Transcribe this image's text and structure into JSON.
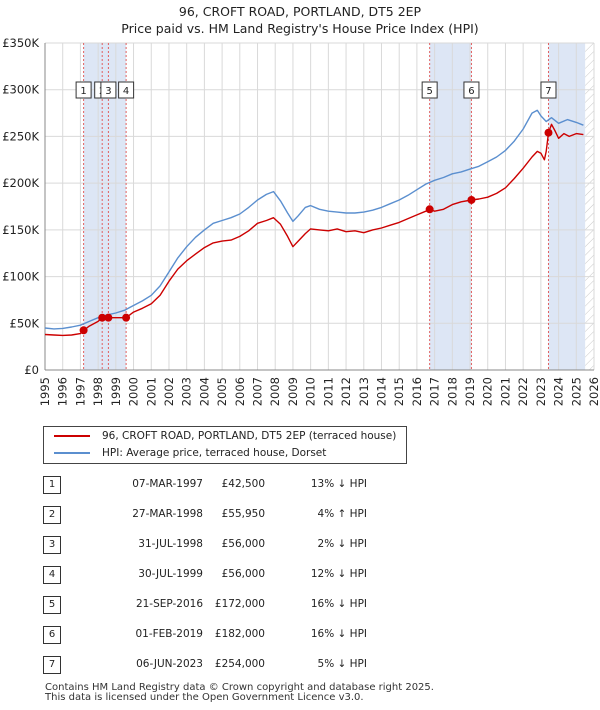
{
  "chart_data": {
    "type": "line",
    "title": "96, CROFT ROAD, PORTLAND, DT5 2EP",
    "subtitle": "Price paid vs. HM Land Registry's House Price Index (HPI)",
    "xlabel": "",
    "ylabel": "",
    "xlim": [
      1995,
      2026
    ],
    "ylim": [
      0,
      350000
    ],
    "x_ticks": [
      "1995",
      "1996",
      "1997",
      "1998",
      "1999",
      "2000",
      "2001",
      "2002",
      "2003",
      "2004",
      "2005",
      "2006",
      "2007",
      "2008",
      "2009",
      "2010",
      "2011",
      "2012",
      "2013",
      "2014",
      "2015",
      "2016",
      "2017",
      "2018",
      "2019",
      "2020",
      "2021",
      "2022",
      "2023",
      "2024",
      "2025",
      "2026"
    ],
    "y_ticks": [
      {
        "value": 0,
        "label": "£0"
      },
      {
        "value": 50000,
        "label": "£50K"
      },
      {
        "value": 100000,
        "label": "£100K"
      },
      {
        "value": 150000,
        "label": "£150K"
      },
      {
        "value": 200000,
        "label": "£200K"
      },
      {
        "value": 250000,
        "label": "£250K"
      },
      {
        "value": 300000,
        "label": "£300K"
      },
      {
        "value": 350000,
        "label": "£350K"
      }
    ],
    "grid": true,
    "series": [
      {
        "name": "96, CROFT ROAD, PORTLAND, DT5 2EP (terraced house)",
        "color": "#cc0000",
        "x": [
          1995.0,
          1995.5,
          1996.0,
          1996.5,
          1997.0,
          1997.18,
          1997.5,
          1998.0,
          1998.23,
          1998.4,
          1998.58,
          1999.0,
          1999.58,
          2000.0,
          2000.5,
          2001.0,
          2001.5,
          2002.0,
          2002.5,
          2003.0,
          2003.5,
          2004.0,
          2004.5,
          2005.0,
          2005.5,
          2006.0,
          2006.5,
          2007.0,
          2007.5,
          2007.9,
          2008.3,
          2008.7,
          2009.0,
          2009.3,
          2009.7,
          2010.0,
          2010.5,
          2011.0,
          2011.5,
          2012.0,
          2012.5,
          2013.0,
          2013.5,
          2014.0,
          2014.5,
          2015.0,
          2015.5,
          2016.0,
          2016.5,
          2016.72,
          2017.0,
          2017.5,
          2018.0,
          2018.5,
          2019.08,
          2019.5,
          2020.0,
          2020.5,
          2021.0,
          2021.5,
          2022.0,
          2022.5,
          2022.8,
          2023.0,
          2023.2,
          2023.3,
          2023.43,
          2023.6,
          2023.8,
          2024.0,
          2024.3,
          2024.6,
          2025.0,
          2025.4
        ],
        "values": [
          38000,
          37500,
          37000,
          37500,
          39000,
          42500,
          47000,
          52000,
          55950,
          56000,
          56000,
          56000,
          56000,
          62000,
          66000,
          71000,
          80000,
          95000,
          108000,
          117000,
          124000,
          131000,
          136000,
          138000,
          139000,
          143000,
          149000,
          157000,
          160000,
          163000,
          156000,
          143000,
          132000,
          138000,
          146000,
          151000,
          150000,
          149000,
          151000,
          148000,
          149000,
          147000,
          150000,
          152000,
          155000,
          158000,
          162000,
          166000,
          170000,
          172000,
          170000,
          172000,
          177000,
          180000,
          182000,
          183000,
          185000,
          189000,
          195000,
          205000,
          216000,
          228000,
          234000,
          232000,
          225000,
          234000,
          254000,
          263000,
          256000,
          248000,
          253000,
          250000,
          253000,
          252000
        ]
      },
      {
        "name": "HPI: Average price, terraced house, Dorset",
        "color": "#5b8fcf",
        "x": [
          1995.0,
          1995.5,
          1996.0,
          1996.5,
          1997.0,
          1997.5,
          1998.0,
          1998.5,
          1999.0,
          1999.5,
          2000.0,
          2000.5,
          2001.0,
          2001.5,
          2002.0,
          2002.5,
          2003.0,
          2003.5,
          2004.0,
          2004.5,
          2005.0,
          2005.5,
          2006.0,
          2006.5,
          2007.0,
          2007.5,
          2007.9,
          2008.3,
          2008.7,
          2009.0,
          2009.3,
          2009.7,
          2010.0,
          2010.5,
          2011.0,
          2011.5,
          2012.0,
          2012.5,
          2013.0,
          2013.5,
          2014.0,
          2014.5,
          2015.0,
          2015.5,
          2016.0,
          2016.5,
          2017.0,
          2017.5,
          2018.0,
          2018.5,
          2019.0,
          2019.5,
          2020.0,
          2020.5,
          2021.0,
          2021.5,
          2022.0,
          2022.5,
          2022.8,
          2023.0,
          2023.3,
          2023.6,
          2024.0,
          2024.5,
          2025.0,
          2025.4
        ],
        "values": [
          45000,
          44000,
          44500,
          46000,
          48000,
          52000,
          56000,
          59000,
          61000,
          64000,
          69000,
          74000,
          80000,
          90000,
          105000,
          120000,
          132000,
          142000,
          150000,
          157000,
          160000,
          163000,
          167000,
          174000,
          182000,
          188000,
          191000,
          181000,
          168000,
          159000,
          165000,
          174000,
          176000,
          172000,
          170000,
          169000,
          168000,
          168000,
          169000,
          171000,
          174000,
          178000,
          182000,
          187000,
          193000,
          199000,
          203000,
          206000,
          210000,
          212000,
          215000,
          218000,
          223000,
          228000,
          235000,
          245000,
          258000,
          275000,
          278000,
          272000,
          266000,
          270000,
          264000,
          268000,
          265000,
          262000
        ]
      }
    ],
    "transactions": [
      {
        "n": "1",
        "x": 1997.18,
        "value": 42500
      },
      {
        "n": "2",
        "x": 1998.23,
        "value": 55950
      },
      {
        "n": "3",
        "x": 1998.58,
        "value": 56000
      },
      {
        "n": "4",
        "x": 1999.58,
        "value": 56000
      },
      {
        "n": "5",
        "x": 2016.72,
        "value": 172000
      },
      {
        "n": "6",
        "x": 2019.08,
        "value": 182000
      },
      {
        "n": "7",
        "x": 2023.43,
        "value": 254000
      }
    ],
    "shaded_ranges": [
      [
        1997.18,
        1998.58
      ],
      [
        1998.58,
        1999.58
      ],
      [
        2016.72,
        2019.08
      ],
      [
        2023.43,
        2025.5
      ]
    ]
  },
  "legend": {
    "property_label": "96, CROFT ROAD, PORTLAND, DT5 2EP (terraced house)",
    "hpi_label": "HPI: Average price, terraced house, Dorset",
    "property_color": "#cc0000",
    "hpi_color": "#5b8fcf"
  },
  "table": [
    {
      "n": "1",
      "date": "07-MAR-1997",
      "price": "£42,500",
      "hpi": "13% ↓ HPI"
    },
    {
      "n": "2",
      "date": "27-MAR-1998",
      "price": "£55,950",
      "hpi": "4% ↑ HPI"
    },
    {
      "n": "3",
      "date": "31-JUL-1998",
      "price": "£56,000",
      "hpi": "2% ↓ HPI"
    },
    {
      "n": "4",
      "date": "30-JUL-1999",
      "price": "£56,000",
      "hpi": "12% ↓ HPI"
    },
    {
      "n": "5",
      "date": "21-SEP-2016",
      "price": "£172,000",
      "hpi": "16% ↓ HPI"
    },
    {
      "n": "6",
      "date": "01-FEB-2019",
      "price": "£182,000",
      "hpi": "16% ↓ HPI"
    },
    {
      "n": "7",
      "date": "06-JUN-2023",
      "price": "£254,000",
      "hpi": "5% ↓ HPI"
    }
  ],
  "footer": {
    "line1": "Contains HM Land Registry data © Crown copyright and database right 2025.",
    "line2": "This data is licensed under the Open Government Licence v3.0."
  }
}
